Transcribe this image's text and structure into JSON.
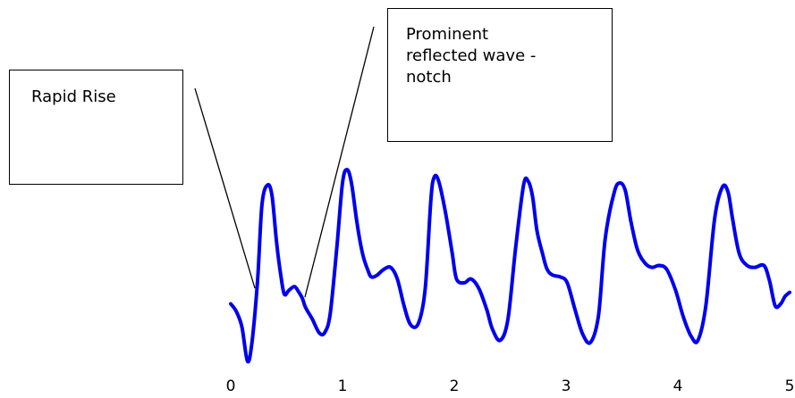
{
  "annotations": [
    {
      "id": "rapid-rise",
      "text": "Rapid Rise"
    },
    {
      "id": "reflected-notch",
      "text": "Prominent\nreflected wave -\nnotch"
    }
  ],
  "chart_data": {
    "type": "line",
    "title": "",
    "xlabel": "",
    "ylabel": "",
    "xlim": [
      0,
      5
    ],
    "ylim": [
      0,
      1
    ],
    "x_ticks": [
      "0",
      "1",
      "2",
      "3",
      "4",
      "5"
    ],
    "grid": false,
    "legend": "none",
    "line_color": "#0000ee",
    "series": [
      {
        "x": [
          0.0,
          0.05,
          0.1,
          0.15,
          0.19,
          0.24,
          0.28,
          0.33,
          0.37,
          0.41,
          0.45,
          0.48,
          0.52,
          0.57,
          0.61,
          0.64,
          0.67,
          0.73,
          0.79,
          0.84,
          0.89,
          0.95,
          1.0,
          1.04,
          1.08,
          1.13,
          1.18,
          1.23,
          1.26,
          1.31,
          1.37,
          1.43,
          1.49,
          1.55,
          1.61,
          1.68,
          1.74,
          1.79,
          1.82,
          1.86,
          1.92,
          1.98,
          2.02,
          2.09,
          2.15,
          2.22,
          2.29,
          2.34,
          2.41,
          2.48,
          2.55,
          2.62,
          2.66,
          2.7,
          2.74,
          2.79,
          2.83,
          2.88,
          2.95,
          3.01,
          3.08,
          3.15,
          3.22,
          3.29,
          3.35,
          3.43,
          3.48,
          3.53,
          3.58,
          3.64,
          3.71,
          3.77,
          3.83,
          3.9,
          3.98,
          4.05,
          4.12,
          4.18,
          4.25,
          4.33,
          4.4,
          4.45,
          4.49,
          4.55,
          4.62,
          4.69,
          4.77,
          4.82,
          4.87,
          4.92,
          4.96,
          5.0
        ],
        "y": [
          0.3,
          0.26,
          0.18,
          0.0,
          0.1,
          0.42,
          0.82,
          0.92,
          0.86,
          0.62,
          0.44,
          0.35,
          0.37,
          0.39,
          0.36,
          0.33,
          0.28,
          0.22,
          0.15,
          0.15,
          0.25,
          0.6,
          0.93,
          1.0,
          0.93,
          0.72,
          0.56,
          0.47,
          0.44,
          0.45,
          0.48,
          0.49,
          0.43,
          0.29,
          0.19,
          0.2,
          0.38,
          0.84,
          0.96,
          0.94,
          0.78,
          0.57,
          0.43,
          0.41,
          0.43,
          0.38,
          0.27,
          0.17,
          0.11,
          0.22,
          0.6,
          0.92,
          0.94,
          0.86,
          0.68,
          0.56,
          0.48,
          0.45,
          0.44,
          0.41,
          0.27,
          0.14,
          0.1,
          0.24,
          0.64,
          0.88,
          0.93,
          0.89,
          0.73,
          0.58,
          0.51,
          0.49,
          0.5,
          0.48,
          0.37,
          0.23,
          0.13,
          0.11,
          0.29,
          0.75,
          0.91,
          0.88,
          0.74,
          0.56,
          0.5,
          0.49,
          0.5,
          0.42,
          0.29,
          0.3,
          0.34,
          0.36
        ]
      }
    ]
  }
}
